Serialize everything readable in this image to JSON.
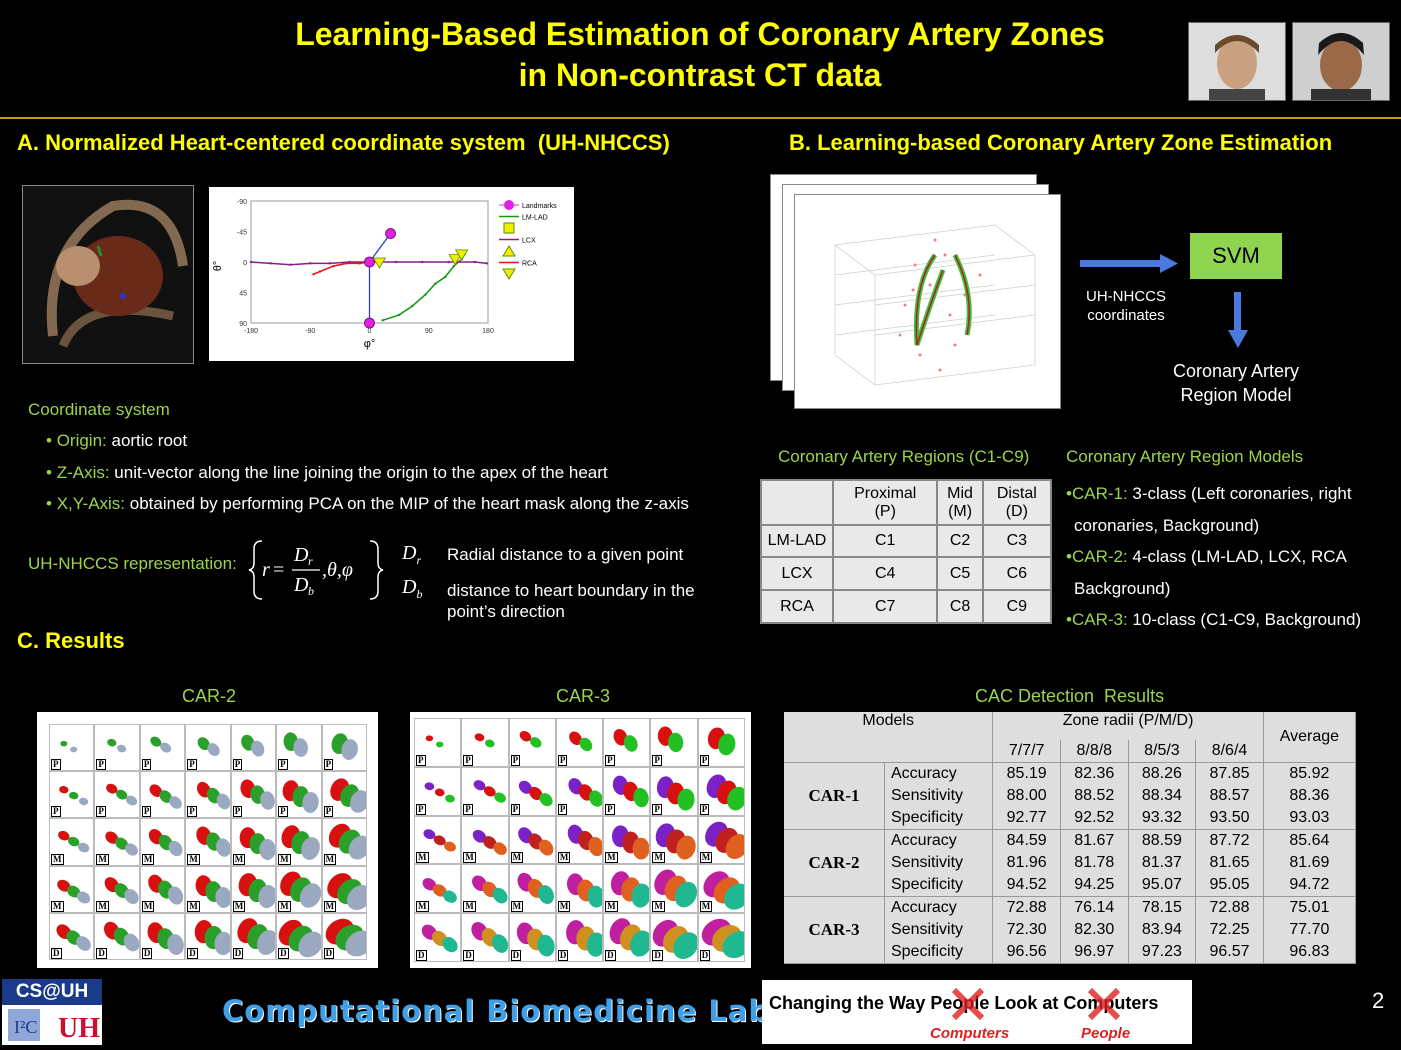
{
  "header": {
    "title_line1": "Learning-Based Estimation of Coronary Artery Zones",
    "title_line2": "in Non-contrast CT data"
  },
  "section_a": {
    "heading": "A. Normalized Heart-centered coordinate system  (UH-NHCCS)",
    "coord_title": "Coordinate system",
    "bullets": [
      {
        "label": "Origin:",
        "text": " aortic root"
      },
      {
        "label": "Z-Axis:",
        "text": " unit-vector along the line joining the origin to the apex of the heart"
      },
      {
        "label": "X,Y-Axis:",
        "text": " obtained by performing PCA on the MIP of the heart mask along the z-axis"
      }
    ],
    "repr_label": "UH-NHCCS representation:",
    "dr_desc": "Radial distance to a given point",
    "db_desc_1": "distance to heart boundary in the",
    "db_desc_2": "point’s direction"
  },
  "chart_data": {
    "type": "line",
    "xlabel": "φ°",
    "ylabel": "θ°",
    "xticks": [
      -180,
      -90,
      0,
      90,
      180
    ],
    "yticks": [
      -90,
      -45,
      0,
      45,
      90
    ],
    "xlim": [
      -180,
      180
    ],
    "ylim": [
      -90,
      90
    ],
    "y_inverted": true,
    "legend": [
      "Landmarks",
      "LM-LAD",
      "LCX",
      "RCA"
    ],
    "series": [
      {
        "name": "Landmarks",
        "color": "#e020e0",
        "points": [
          [
            0,
            0
          ],
          [
            32,
            -42
          ],
          [
            0,
            90
          ]
        ]
      },
      {
        "name": "LM-LAD",
        "color": "#119911",
        "points": [
          [
            20,
            86
          ],
          [
            45,
            78
          ],
          [
            65,
            65
          ],
          [
            85,
            48
          ],
          [
            100,
            32
          ],
          [
            115,
            22
          ],
          [
            128,
            6
          ],
          [
            140,
            -4
          ],
          [
            145,
            -12
          ]
        ]
      },
      {
        "name": "LCX",
        "color": "#8a1b8a",
        "points": [
          [
            -180,
            0
          ],
          [
            -150,
            2
          ],
          [
            -120,
            4
          ],
          [
            -90,
            2
          ],
          [
            -60,
            2
          ],
          [
            -30,
            0
          ],
          [
            0,
            0
          ],
          [
            40,
            0
          ],
          [
            80,
            0
          ],
          [
            120,
            0
          ],
          [
            160,
            0
          ],
          [
            178,
            2
          ]
        ]
      },
      {
        "name": "RCA",
        "color": "#ee1111",
        "points": [
          [
            0,
            0
          ],
          [
            -15,
            2
          ],
          [
            -35,
            2
          ],
          [
            -55,
            6
          ],
          [
            -75,
            14
          ],
          [
            -85,
            18
          ]
        ]
      }
    ]
  },
  "section_b": {
    "heading": "B. Learning-based Coronary Artery Zone Estimation",
    "svm_label": "SVM",
    "arrow_label_1": "UH-NHCCS",
    "arrow_label_2": "coordinates",
    "model_label_1": "Coronary Artery",
    "model_label_2": "Region Model",
    "regions_title": "Coronary Artery Regions (C1-C9)",
    "regions_table": {
      "headers": [
        [
          "",
          ""
        ],
        [
          "Proximal",
          "(P)"
        ],
        [
          "Mid",
          "(M)"
        ],
        [
          "Distal",
          "(D)"
        ]
      ],
      "rows": [
        [
          "LM-LAD",
          "C1",
          "C2",
          "C3"
        ],
        [
          "LCX",
          "C4",
          "C5",
          "C6"
        ],
        [
          "RCA",
          "C7",
          "C8",
          "C9"
        ]
      ]
    },
    "models_title": "Coronary Artery Region Models",
    "models": [
      {
        "label": "CAR-1:",
        "text_1": " 3-class (Left coronaries, right",
        "text_2": "coronaries, Background)"
      },
      {
        "label": "CAR-2:",
        "text_1": " 4-class (LM-LAD, LCX, RCA",
        "text_2": "Background)"
      },
      {
        "label": "CAR-3:",
        "text_1": " 10-class (C1-C9, Background)",
        "text_2": ""
      }
    ]
  },
  "section_c": {
    "heading": "C. Results",
    "car2_label": "CAR-2",
    "car3_label": "CAR-3",
    "row_letters": [
      "P",
      "P",
      "M",
      "M",
      "D"
    ],
    "cac_title": "CAC Detection  Results",
    "cac_table": {
      "models_header": "Models",
      "zone_header": "Zone radii (P/M/D)",
      "average_header": "Average",
      "radii": [
        "7/7/7",
        "8/8/8",
        "8/5/3",
        "8/6/4"
      ],
      "groups": [
        {
          "model": "CAR-1",
          "rows": [
            {
              "metric": "Accuracy",
              "values": [
                "85.19",
                "82.36",
                "88.26",
                "87.85",
                "85.92"
              ]
            },
            {
              "metric": "Sensitivity",
              "values": [
                "88.00",
                "88.52",
                "88.34",
                "88.57",
                "88.36"
              ]
            },
            {
              "metric": "Specificity",
              "values": [
                "92.77",
                "92.52",
                "93.32",
                "93.50",
                "93.03"
              ]
            }
          ]
        },
        {
          "model": "CAR-2",
          "rows": [
            {
              "metric": "Accuracy",
              "values": [
                "84.59",
                "81.67",
                "88.59",
                "87.72",
                "85.64"
              ]
            },
            {
              "metric": "Sensitivity",
              "values": [
                "81.96",
                "81.78",
                "81.37",
                "81.65",
                "81.69"
              ]
            },
            {
              "metric": "Specificity",
              "values": [
                "94.52",
                "94.25",
                "95.07",
                "95.05",
                "94.72"
              ]
            }
          ]
        },
        {
          "model": "CAR-3",
          "rows": [
            {
              "metric": "Accuracy",
              "values": [
                "72.88",
                "76.14",
                "78.15",
                "72.88",
                "75.01"
              ]
            },
            {
              "metric": "Sensitivity",
              "values": [
                "72.30",
                "82.30",
                "83.94",
                "72.25",
                "77.70"
              ]
            },
            {
              "metric": "Specificity",
              "values": [
                "96.56",
                "96.97",
                "97.23",
                "96.57",
                "96.83"
              ]
            }
          ]
        }
      ]
    }
  },
  "footer": {
    "logo_text": "CS@UH",
    "lab_name": "Computational Biomedicine Lab",
    "slogan": "Changing the Way People Look at Computers",
    "word_computers": "Computers",
    "word_people": "People",
    "page_number": "2"
  }
}
